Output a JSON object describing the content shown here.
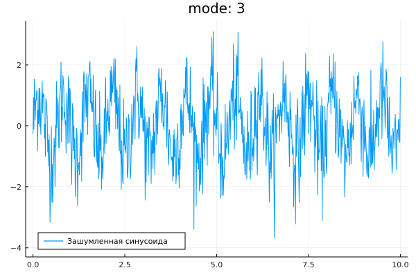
{
  "chart_data": {
    "type": "line",
    "title": "mode: 3",
    "xlabel": "",
    "ylabel": "",
    "xlim": [
      -0.2,
      10.2
    ],
    "ylim": [
      -4.3,
      3.45
    ],
    "x_ticks": [
      0.0,
      2.5,
      5.0,
      7.5,
      10.0
    ],
    "x_tick_labels": [
      "0.0",
      "2.5",
      "5.0",
      "7.5",
      "10.0"
    ],
    "y_ticks": [
      -4,
      -2,
      0,
      2
    ],
    "y_tick_labels": [
      "−4",
      "−2",
      "0",
      "2"
    ],
    "grid": true,
    "legend_position": "bottom-left",
    "series": [
      {
        "name": "Зашумленная синусоида",
        "color": "#009AF9",
        "x_start": 0.0,
        "x_end": 10.0,
        "points": 800,
        "signal": "sin",
        "frequency_periods": 15,
        "noise_amplitude": 1.0
      }
    ]
  }
}
